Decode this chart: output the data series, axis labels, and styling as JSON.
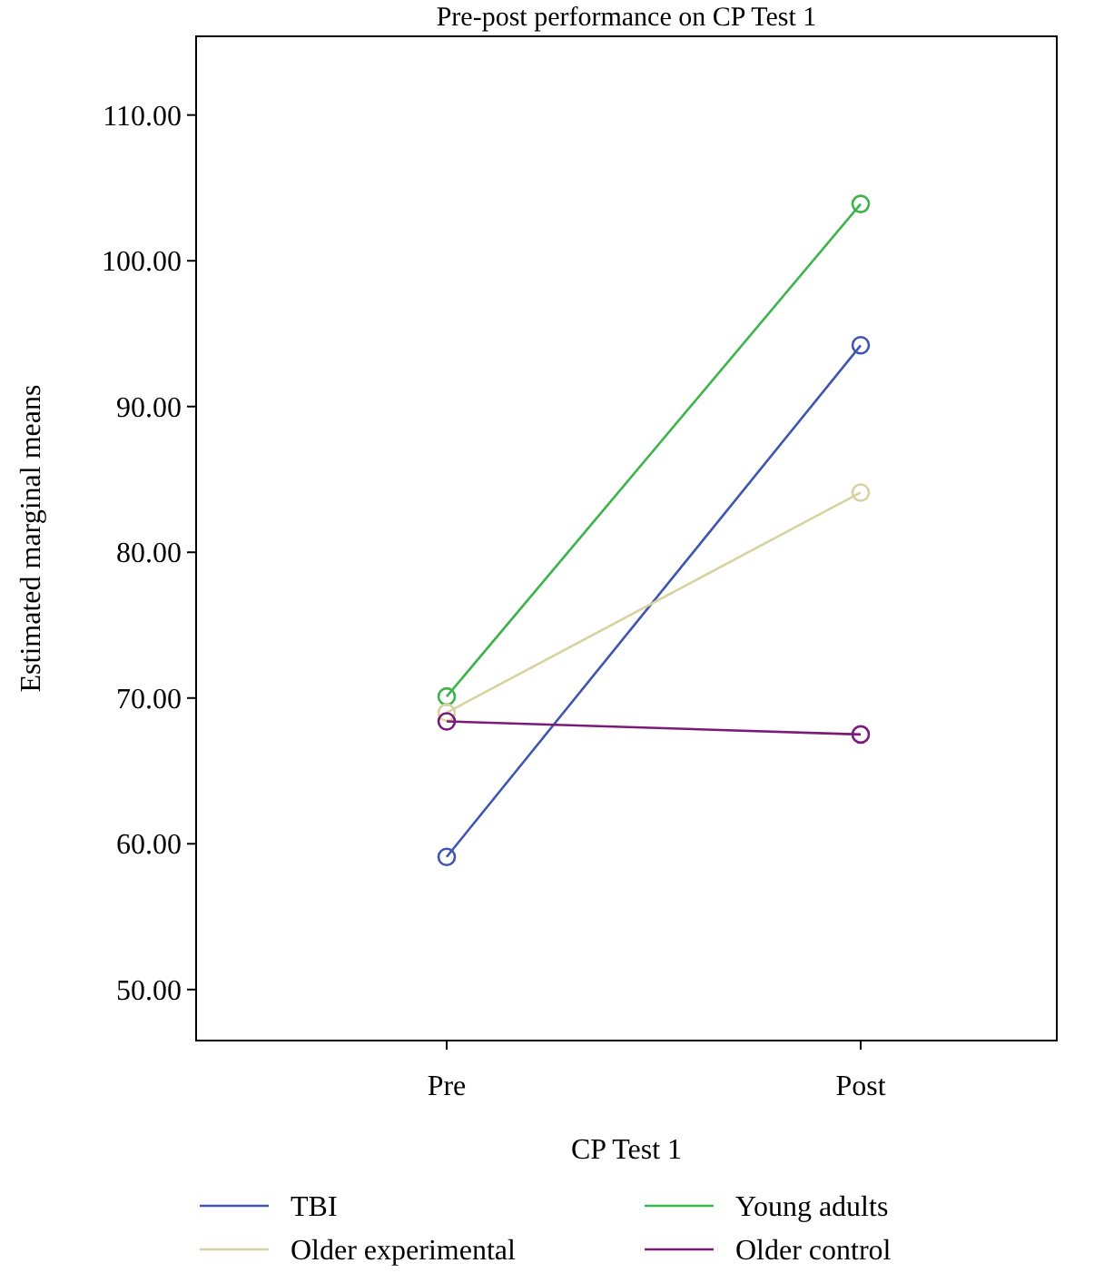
{
  "chart_data": {
    "type": "line",
    "title": "Pre-post performance on CP Test 1",
    "xlabel": "CP Test 1",
    "ylabel": "Estimated marginal means",
    "categories": [
      "Pre",
      "Post"
    ],
    "series": [
      {
        "name": "TBI",
        "color": "#3f55b0",
        "values": [
          59.1,
          94.2
        ]
      },
      {
        "name": "Young adults",
        "color": "#3cb44b",
        "values": [
          70.1,
          103.9
        ]
      },
      {
        "name": "Older experimental",
        "color": "#d8d2a0",
        "values": [
          69.0,
          84.1
        ]
      },
      {
        "name": "Older control",
        "color": "#7a1a7a",
        "values": [
          68.4,
          67.5
        ]
      }
    ],
    "ylim": [
      46.5,
      115.4
    ],
    "yticks": [
      {
        "value": 50,
        "label": "50.00"
      },
      {
        "value": 60,
        "label": "60.00"
      },
      {
        "value": 70,
        "label": "70.00"
      },
      {
        "value": 80,
        "label": "80.00"
      },
      {
        "value": 90,
        "label": "90.00"
      },
      {
        "value": 100,
        "label": "100.00"
      },
      {
        "value": 110,
        "label": "110.00"
      }
    ],
    "marker": "circle",
    "line_style": "solid",
    "grid": false,
    "legend": "bottom"
  }
}
